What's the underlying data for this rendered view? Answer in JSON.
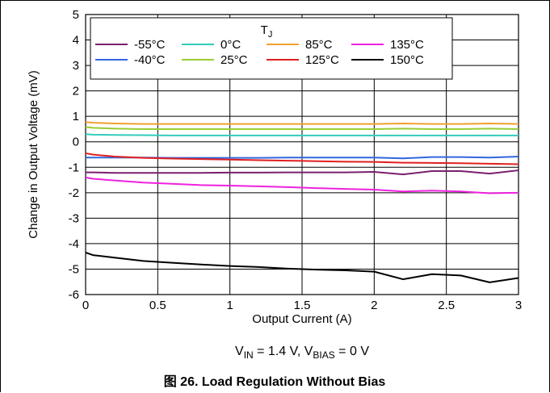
{
  "chart_data": {
    "type": "line",
    "title": "",
    "xlabel": "Output Current (A)",
    "ylabel": "Change in Output Voltage (mV)",
    "xlim": [
      0,
      3
    ],
    "ylim": [
      -6,
      5
    ],
    "xticks": [
      "0",
      "0.5",
      "1",
      "1.5",
      "2",
      "2.5",
      "3"
    ],
    "yticks": [
      "-6",
      "-5",
      "-4",
      "-3",
      "-2",
      "-1",
      "0",
      "1",
      "2",
      "3",
      "4",
      "5"
    ],
    "grid": true,
    "legend_title": "T",
    "legend_title_sub": "J",
    "legend_position": "top-right",
    "x": [
      0,
      0.05,
      0.2,
      0.4,
      0.6,
      0.8,
      1.0,
      1.2,
      1.4,
      1.6,
      1.8,
      2.0,
      2.2,
      2.4,
      2.6,
      2.8,
      3.0
    ],
    "series": [
      {
        "name": "-55°C",
        "color": "#7b1f6e",
        "values": [
          -1.2,
          -1.2,
          -1.22,
          -1.22,
          -1.22,
          -1.22,
          -1.21,
          -1.21,
          -1.2,
          -1.2,
          -1.2,
          -1.18,
          -1.28,
          -1.15,
          -1.15,
          -1.25,
          -1.12
        ]
      },
      {
        "name": "-40°C",
        "color": "#3366dd",
        "values": [
          -0.62,
          -0.62,
          -0.62,
          -0.62,
          -0.63,
          -0.63,
          -0.63,
          -0.63,
          -0.62,
          -0.62,
          -0.62,
          -0.62,
          -0.65,
          -0.6,
          -0.6,
          -0.62,
          -0.58
        ]
      },
      {
        "name": "0°C",
        "color": "#33ccbb",
        "values": [
          0.3,
          0.28,
          0.27,
          0.26,
          0.25,
          0.25,
          0.25,
          0.25,
          0.25,
          0.25,
          0.25,
          0.25,
          0.25,
          0.25,
          0.25,
          0.25,
          0.25
        ]
      },
      {
        "name": "25°C",
        "color": "#99cc33",
        "values": [
          0.58,
          0.55,
          0.52,
          0.5,
          0.5,
          0.5,
          0.5,
          0.5,
          0.5,
          0.5,
          0.5,
          0.5,
          0.52,
          0.5,
          0.5,
          0.52,
          0.5
        ]
      },
      {
        "name": "85°C",
        "color": "#f0a030",
        "values": [
          0.78,
          0.75,
          0.72,
          0.7,
          0.7,
          0.7,
          0.7,
          0.7,
          0.7,
          0.7,
          0.7,
          0.7,
          0.72,
          0.7,
          0.7,
          0.72,
          0.7
        ]
      },
      {
        "name": "125°C",
        "color": "#e02020",
        "values": [
          -0.45,
          -0.5,
          -0.58,
          -0.63,
          -0.66,
          -0.68,
          -0.7,
          -0.72,
          -0.74,
          -0.76,
          -0.78,
          -0.79,
          -0.82,
          -0.83,
          -0.84,
          -0.86,
          -0.88
        ]
      },
      {
        "name": "135°C",
        "color": "#ee22dd",
        "values": [
          -1.4,
          -1.45,
          -1.52,
          -1.6,
          -1.65,
          -1.7,
          -1.72,
          -1.75,
          -1.78,
          -1.82,
          -1.85,
          -1.88,
          -1.95,
          -1.92,
          -1.95,
          -2.02,
          -2.0
        ]
      },
      {
        "name": "150°C",
        "color": "#000000",
        "values": [
          -4.35,
          -4.45,
          -4.55,
          -4.68,
          -4.75,
          -4.82,
          -4.88,
          -4.92,
          -4.98,
          -5.02,
          -5.05,
          -5.1,
          -5.4,
          -5.2,
          -5.25,
          -5.52,
          -5.35
        ]
      }
    ]
  },
  "condition_parts": [
    "V",
    "IN",
    " = 1.4 V, V",
    "BIAS",
    " = 0 V"
  ],
  "caption": "图 26. Load Regulation Without Bias"
}
